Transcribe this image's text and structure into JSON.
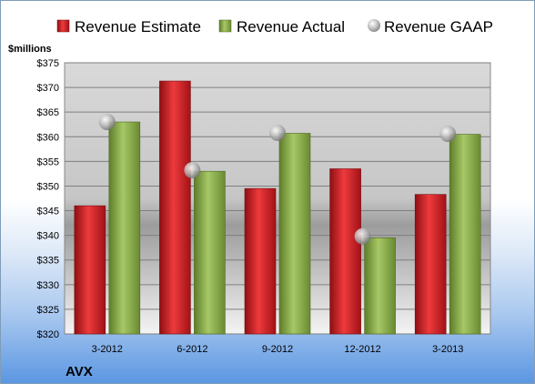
{
  "chart_data": {
    "type": "bar",
    "ylabel": "$millions",
    "footer_label": "AVX",
    "categories": [
      "3-2012",
      "6-2012",
      "9-2012",
      "12-2012",
      "3-2013"
    ],
    "series": [
      {
        "name": "Revenue Estimate",
        "kind": "bar",
        "color": "#d81e22",
        "values": [
          346,
          371.3,
          349.5,
          353.5,
          348.3
        ]
      },
      {
        "name": "Revenue Actual",
        "kind": "bar",
        "color": "#8cb04c",
        "values": [
          363,
          353,
          360.7,
          339.5,
          360.5
        ]
      },
      {
        "name": "Revenue GAAP",
        "kind": "marker",
        "color": "#a6a6a6",
        "values": [
          363,
          353.2,
          360.8,
          339.8,
          360.6
        ]
      }
    ],
    "ylim": [
      320,
      375
    ],
    "ytick_step": 5,
    "ytick_labels": [
      "$320",
      "$325",
      "$330",
      "$335",
      "$340",
      "$345",
      "$350",
      "$355",
      "$360",
      "$365",
      "$370",
      "$375"
    ],
    "grid": true,
    "legend_position": "top"
  }
}
